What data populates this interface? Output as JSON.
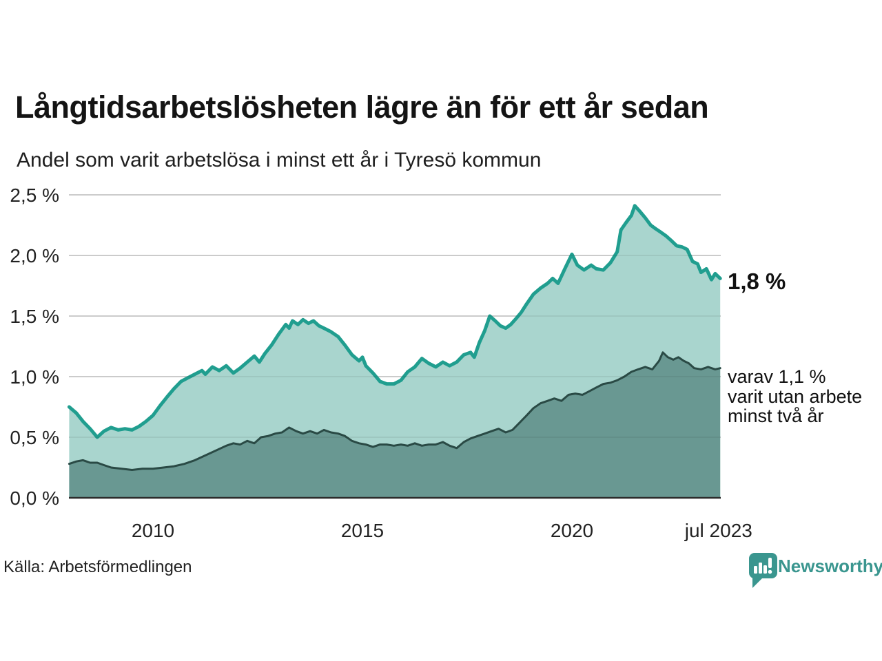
{
  "header": {
    "title": "Långtidsarbetslösheten lägre än för ett år sedan",
    "subtitle": "Andel som varit arbetslösa i minst ett år i Tyresö kommun"
  },
  "annotations": {
    "latest_total": "1,8 %",
    "secondary_line1": "varav 1,1 %",
    "secondary_line2": "varit utan arbete",
    "secondary_line3": "minst två år"
  },
  "footer": {
    "source": "Källa: Arbetsförmedlingen",
    "brand": "Newsworthy"
  },
  "colors": {
    "background": "#ffffff",
    "grid": "#d9d9d9",
    "grid_overlay": "rgba(40,40,40,0.08)",
    "axis": "#2c2c2c",
    "tick_text": "#222222",
    "brand_teal": "#3a968f"
  },
  "chart_data": {
    "type": "area",
    "title": "Långtidsarbetslösheten lägre än för ett år sedan",
    "subtitle": "Andel som varit arbetslösa i minst ett år i Tyresö kommun",
    "xlabel": "",
    "ylabel": "",
    "grid": true,
    "legend_position": "none",
    "x_range": [
      2008.0,
      2023.54
    ],
    "ylim": [
      0,
      2.5
    ],
    "y_ticks": [
      {
        "v": 2.5,
        "label": "2,5 %"
      },
      {
        "v": 2.0,
        "label": "2,0 %"
      },
      {
        "v": 1.5,
        "label": "1,5 %"
      },
      {
        "v": 1.0,
        "label": "1,0 %"
      },
      {
        "v": 0.5,
        "label": "0,5 %"
      },
      {
        "v": 0.0,
        "label": "0,0 %"
      }
    ],
    "x_ticks": [
      {
        "t": 2010,
        "label": "2010"
      },
      {
        "t": 2015,
        "label": "2015"
      },
      {
        "t": 2020,
        "label": "2020"
      },
      {
        "t": 2023.5,
        "label": "jul 2023"
      }
    ],
    "series": [
      {
        "name": "Andel arbetslösa minst ett år",
        "end_label": "1,8 %",
        "line_color": "#209e8f",
        "fill_color": "#a9d5ce",
        "line_width": 5,
        "points": [
          [
            2008.0,
            0.75
          ],
          [
            2008.17,
            0.7
          ],
          [
            2008.33,
            0.63
          ],
          [
            2008.5,
            0.57
          ],
          [
            2008.67,
            0.5
          ],
          [
            2008.83,
            0.55
          ],
          [
            2009.0,
            0.58
          ],
          [
            2009.17,
            0.56
          ],
          [
            2009.33,
            0.57
          ],
          [
            2009.5,
            0.56
          ],
          [
            2009.67,
            0.59
          ],
          [
            2009.83,
            0.63
          ],
          [
            2010.0,
            0.68
          ],
          [
            2010.17,
            0.76
          ],
          [
            2010.33,
            0.83
          ],
          [
            2010.5,
            0.9
          ],
          [
            2010.67,
            0.96
          ],
          [
            2010.83,
            0.99
          ],
          [
            2011.0,
            1.02
          ],
          [
            2011.17,
            1.05
          ],
          [
            2011.25,
            1.02
          ],
          [
            2011.42,
            1.08
          ],
          [
            2011.58,
            1.05
          ],
          [
            2011.75,
            1.09
          ],
          [
            2011.92,
            1.03
          ],
          [
            2012.08,
            1.07
          ],
          [
            2012.25,
            1.12
          ],
          [
            2012.42,
            1.17
          ],
          [
            2012.54,
            1.12
          ],
          [
            2012.67,
            1.19
          ],
          [
            2012.83,
            1.26
          ],
          [
            2013.0,
            1.35
          ],
          [
            2013.17,
            1.43
          ],
          [
            2013.25,
            1.4
          ],
          [
            2013.33,
            1.46
          ],
          [
            2013.46,
            1.43
          ],
          [
            2013.58,
            1.47
          ],
          [
            2013.71,
            1.44
          ],
          [
            2013.83,
            1.46
          ],
          [
            2013.96,
            1.42
          ],
          [
            2014.08,
            1.4
          ],
          [
            2014.25,
            1.37
          ],
          [
            2014.42,
            1.33
          ],
          [
            2014.58,
            1.26
          ],
          [
            2014.75,
            1.18
          ],
          [
            2014.92,
            1.13
          ],
          [
            2015.0,
            1.16
          ],
          [
            2015.08,
            1.09
          ],
          [
            2015.25,
            1.03
          ],
          [
            2015.42,
            0.96
          ],
          [
            2015.58,
            0.94
          ],
          [
            2015.75,
            0.94
          ],
          [
            2015.92,
            0.97
          ],
          [
            2016.08,
            1.04
          ],
          [
            2016.25,
            1.08
          ],
          [
            2016.42,
            1.15
          ],
          [
            2016.58,
            1.11
          ],
          [
            2016.75,
            1.08
          ],
          [
            2016.92,
            1.12
          ],
          [
            2017.08,
            1.09
          ],
          [
            2017.25,
            1.12
          ],
          [
            2017.42,
            1.18
          ],
          [
            2017.58,
            1.2
          ],
          [
            2017.67,
            1.16
          ],
          [
            2017.79,
            1.28
          ],
          [
            2017.92,
            1.38
          ],
          [
            2018.04,
            1.5
          ],
          [
            2018.17,
            1.46
          ],
          [
            2018.29,
            1.42
          ],
          [
            2018.42,
            1.4
          ],
          [
            2018.54,
            1.43
          ],
          [
            2018.67,
            1.48
          ],
          [
            2018.79,
            1.53
          ],
          [
            2018.92,
            1.6
          ],
          [
            2019.08,
            1.68
          ],
          [
            2019.25,
            1.73
          ],
          [
            2019.42,
            1.77
          ],
          [
            2019.54,
            1.81
          ],
          [
            2019.67,
            1.77
          ],
          [
            2019.83,
            1.89
          ],
          [
            2020.0,
            2.01
          ],
          [
            2020.13,
            1.92
          ],
          [
            2020.29,
            1.88
          ],
          [
            2020.46,
            1.92
          ],
          [
            2020.58,
            1.89
          ],
          [
            2020.75,
            1.88
          ],
          [
            2020.92,
            1.94
          ],
          [
            2021.08,
            2.03
          ],
          [
            2021.17,
            2.21
          ],
          [
            2021.29,
            2.27
          ],
          [
            2021.42,
            2.33
          ],
          [
            2021.5,
            2.41
          ],
          [
            2021.63,
            2.36
          ],
          [
            2021.75,
            2.31
          ],
          [
            2021.88,
            2.25
          ],
          [
            2022.0,
            2.22
          ],
          [
            2022.13,
            2.19
          ],
          [
            2022.25,
            2.16
          ],
          [
            2022.38,
            2.12
          ],
          [
            2022.5,
            2.08
          ],
          [
            2022.63,
            2.07
          ],
          [
            2022.75,
            2.05
          ],
          [
            2022.88,
            1.95
          ],
          [
            2023.0,
            1.93
          ],
          [
            2023.08,
            1.86
          ],
          [
            2023.21,
            1.89
          ],
          [
            2023.33,
            1.8
          ],
          [
            2023.42,
            1.85
          ],
          [
            2023.54,
            1.81
          ]
        ]
      },
      {
        "name": "varav utan arbete minst två år",
        "end_label": "varav 1,1 % varit utan arbete minst två år",
        "line_color": "#2a4a45",
        "fill_color": "#699892",
        "line_width": 3,
        "points": [
          [
            2008.0,
            0.28
          ],
          [
            2008.17,
            0.3
          ],
          [
            2008.33,
            0.31
          ],
          [
            2008.5,
            0.29
          ],
          [
            2008.67,
            0.29
          ],
          [
            2008.83,
            0.27
          ],
          [
            2009.0,
            0.25
          ],
          [
            2009.25,
            0.24
          ],
          [
            2009.5,
            0.23
          ],
          [
            2009.75,
            0.24
          ],
          [
            2010.0,
            0.24
          ],
          [
            2010.25,
            0.25
          ],
          [
            2010.5,
            0.26
          ],
          [
            2010.75,
            0.28
          ],
          [
            2011.0,
            0.31
          ],
          [
            2011.25,
            0.35
          ],
          [
            2011.5,
            0.39
          ],
          [
            2011.75,
            0.43
          ],
          [
            2011.92,
            0.45
          ],
          [
            2012.08,
            0.44
          ],
          [
            2012.25,
            0.47
          ],
          [
            2012.42,
            0.45
          ],
          [
            2012.58,
            0.5
          ],
          [
            2012.75,
            0.51
          ],
          [
            2012.92,
            0.53
          ],
          [
            2013.08,
            0.54
          ],
          [
            2013.25,
            0.58
          ],
          [
            2013.42,
            0.55
          ],
          [
            2013.58,
            0.53
          ],
          [
            2013.75,
            0.55
          ],
          [
            2013.92,
            0.53
          ],
          [
            2014.08,
            0.56
          ],
          [
            2014.25,
            0.54
          ],
          [
            2014.42,
            0.53
          ],
          [
            2014.58,
            0.51
          ],
          [
            2014.75,
            0.47
          ],
          [
            2014.92,
            0.45
          ],
          [
            2015.08,
            0.44
          ],
          [
            2015.25,
            0.42
          ],
          [
            2015.42,
            0.44
          ],
          [
            2015.58,
            0.44
          ],
          [
            2015.75,
            0.43
          ],
          [
            2015.92,
            0.44
          ],
          [
            2016.08,
            0.43
          ],
          [
            2016.25,
            0.45
          ],
          [
            2016.42,
            0.43
          ],
          [
            2016.58,
            0.44
          ],
          [
            2016.75,
            0.44
          ],
          [
            2016.92,
            0.46
          ],
          [
            2017.08,
            0.43
          ],
          [
            2017.25,
            0.41
          ],
          [
            2017.42,
            0.46
          ],
          [
            2017.58,
            0.49
          ],
          [
            2017.75,
            0.51
          ],
          [
            2017.92,
            0.53
          ],
          [
            2018.08,
            0.55
          ],
          [
            2018.25,
            0.57
          ],
          [
            2018.42,
            0.54
          ],
          [
            2018.58,
            0.56
          ],
          [
            2018.75,
            0.62
          ],
          [
            2018.92,
            0.68
          ],
          [
            2019.08,
            0.74
          ],
          [
            2019.25,
            0.78
          ],
          [
            2019.42,
            0.8
          ],
          [
            2019.58,
            0.82
          ],
          [
            2019.75,
            0.8
          ],
          [
            2019.92,
            0.85
          ],
          [
            2020.08,
            0.86
          ],
          [
            2020.25,
            0.85
          ],
          [
            2020.42,
            0.88
          ],
          [
            2020.58,
            0.91
          ],
          [
            2020.75,
            0.94
          ],
          [
            2020.92,
            0.95
          ],
          [
            2021.08,
            0.97
          ],
          [
            2021.25,
            1.0
          ],
          [
            2021.42,
            1.04
          ],
          [
            2021.58,
            1.06
          ],
          [
            2021.75,
            1.08
          ],
          [
            2021.92,
            1.06
          ],
          [
            2022.08,
            1.13
          ],
          [
            2022.17,
            1.2
          ],
          [
            2022.29,
            1.16
          ],
          [
            2022.42,
            1.14
          ],
          [
            2022.54,
            1.16
          ],
          [
            2022.67,
            1.13
          ],
          [
            2022.79,
            1.11
          ],
          [
            2022.92,
            1.07
          ],
          [
            2023.08,
            1.06
          ],
          [
            2023.25,
            1.08
          ],
          [
            2023.42,
            1.06
          ],
          [
            2023.54,
            1.07
          ]
        ]
      }
    ]
  }
}
